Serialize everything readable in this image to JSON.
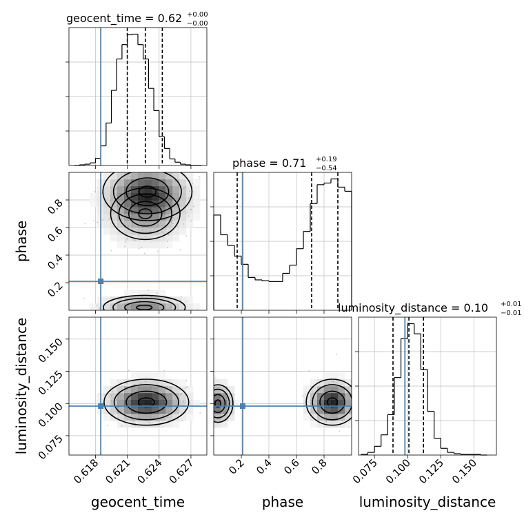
{
  "chart_data": {
    "type": "corner",
    "parameters": [
      "geocent_time",
      "phase",
      "luminosity_distance"
    ],
    "injection": {
      "geocent_time": 0.6185,
      "phase": 0.21,
      "luminosity_distance": 0.098
    },
    "colors": {
      "truth": "#4682b4",
      "hist": "#000000",
      "grid": "#bdbdbd",
      "quantile": "#000000"
    },
    "grid": true,
    "panels": {
      "geocent_time_hist": {
        "title": "geocent_time = 0.62",
        "title_sup": "+0.00",
        "title_sub": "−0.00",
        "xlim": [
          0.6155,
          0.6285
        ],
        "bin_edges": [
          0.616,
          0.6165,
          0.617,
          0.6175,
          0.618,
          0.6185,
          0.619,
          0.6195,
          0.62,
          0.6205,
          0.621,
          0.6215,
          0.622,
          0.6225,
          0.623,
          0.6235,
          0.624,
          0.6245,
          0.625,
          0.6255,
          0.626,
          0.6265,
          0.627,
          0.6275,
          0.628
        ],
        "counts": [
          0,
          1,
          2,
          4,
          11,
          30,
          65,
          115,
          163,
          185,
          200,
          201,
          185,
          163,
          118,
          84,
          44,
          26,
          10,
          5,
          2,
          1,
          0,
          0
        ],
        "quantiles": [
          0.621,
          0.6227,
          0.6243
        ]
      },
      "phase_hist": {
        "title": "phase = 0.71",
        "title_sup": "+0.19",
        "title_sub": "−0.54",
        "xlim": [
          0.0,
          1.0
        ],
        "bin_edges": [
          0.0,
          0.05,
          0.1,
          0.15,
          0.2,
          0.25,
          0.3,
          0.35,
          0.4,
          0.45,
          0.5,
          0.55,
          0.6,
          0.65,
          0.7,
          0.75,
          0.8,
          0.85,
          0.9,
          0.95,
          1.0
        ],
        "counts": [
          116,
          92,
          79,
          66,
          56,
          40,
          37,
          36,
          35,
          35,
          45,
          55,
          75,
          96,
          130,
          153,
          155,
          160,
          150,
          145
        ],
        "quantiles": [
          0.17,
          0.71,
          0.9
        ]
      },
      "luminosity_distance_hist": {
        "title": "luminosity_distance = 0.10",
        "title_sup": "+0.01",
        "title_sub": "−0.01",
        "xlim": [
          0.063,
          0.167
        ],
        "bin_edges": [
          0.065,
          0.07,
          0.075,
          0.08,
          0.085,
          0.09,
          0.095,
          0.1,
          0.105,
          0.11,
          0.115,
          0.12,
          0.125,
          0.13,
          0.135,
          0.14,
          0.145,
          0.15,
          0.155,
          0.16
        ],
        "counts": [
          1,
          4,
          13,
          30,
          60,
          115,
          173,
          195,
          180,
          127,
          65,
          25,
          10,
          4,
          2,
          1,
          1,
          1,
          0
        ],
        "quantiles": [
          0.089,
          0.101,
          0.112
        ]
      },
      "phase_vs_geocent_time": {
        "x": "geocent_time",
        "y": "phase",
        "xlim": [
          0.6155,
          0.6285
        ],
        "ylim": [
          0.0,
          1.0
        ],
        "modes": [
          {
            "cx": 0.6229,
            "cy": 0.86,
            "sx": 0.002,
            "sy": 0.1,
            "w": 1.0
          },
          {
            "cx": 0.6227,
            "cy": 0.7,
            "sx": 0.0021,
            "sy": 0.12,
            "w": 0.55
          },
          {
            "cx": 0.6226,
            "cy": 0.02,
            "sx": 0.0022,
            "sy": 0.05,
            "w": 0.7
          }
        ]
      },
      "luminosity_distance_vs_geocent_time": {
        "x": "geocent_time",
        "y": "luminosity_distance",
        "xlim": [
          0.6155,
          0.6285
        ],
        "ylim": [
          0.06,
          0.167
        ],
        "modes": [
          {
            "cx": 0.6228,
            "cy": 0.101,
            "sx": 0.0019,
            "sy": 0.0085,
            "w": 1.0
          }
        ]
      },
      "luminosity_distance_vs_phase": {
        "x": "phase",
        "y": "luminosity_distance",
        "xlim": [
          0.0,
          1.0
        ],
        "ylim": [
          0.06,
          0.167
        ],
        "modes": [
          {
            "cx": 0.86,
            "cy": 0.101,
            "sx": 0.09,
            "sy": 0.0085,
            "w": 1.0
          },
          {
            "cx": 0.03,
            "cy": 0.1,
            "sx": 0.06,
            "sy": 0.008,
            "w": 0.75
          }
        ]
      }
    },
    "axes": {
      "geocent_time_ticks": [
        "0.618",
        "0.621",
        "0.624",
        "0.627"
      ],
      "geocent_time_tick_values": [
        0.618,
        0.621,
        0.624,
        0.627
      ],
      "phase_ticks": [
        "0.2",
        "0.4",
        "0.6",
        "0.8"
      ],
      "phase_tick_values": [
        0.2,
        0.4,
        0.6,
        0.8
      ],
      "luminosity_distance_ticks": [
        "0.075",
        "0.100",
        "0.125",
        "0.150"
      ],
      "luminosity_distance_tick_values": [
        0.075,
        0.1,
        0.125,
        0.15
      ],
      "xlabels": [
        "geocent_time",
        "phase",
        "luminosity_distance"
      ],
      "ylabels": [
        "phase",
        "luminosity_distance"
      ]
    }
  }
}
